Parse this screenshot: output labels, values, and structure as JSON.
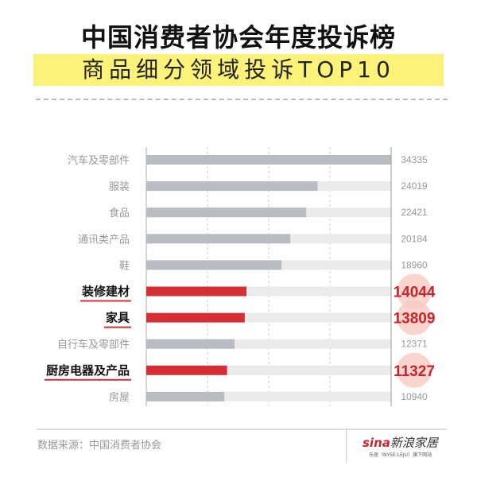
{
  "header": {
    "title": "中国消费者协会年度投诉榜",
    "subtitle": "商品细分领域投诉TOP10"
  },
  "chart_data": {
    "type": "bar",
    "orientation": "horizontal",
    "title": "中国消费者协会年度投诉榜",
    "subtitle": "商品细分领域投诉TOP10",
    "categories": [
      "汽车及零部件",
      "服装",
      "食品",
      "通讯类产品",
      "鞋",
      "装修建材",
      "家具",
      "自行车及零部件",
      "厨房电器及产品",
      "房屋"
    ],
    "values": [
      34335,
      24019,
      22421,
      20184,
      18960,
      14044,
      13809,
      12371,
      11327,
      10940
    ],
    "highlighted": [
      false,
      false,
      false,
      false,
      false,
      true,
      true,
      false,
      true,
      false
    ],
    "xlim": [
      0,
      34335
    ],
    "grid": "vertical dashed",
    "colors": {
      "normal": "#b9bcc1",
      "highlight": "#d32f34",
      "track": "#ebebeb",
      "circle": "#f9c9c2"
    }
  },
  "footer": {
    "source": "数据来源：中国消费者协会",
    "logo_brand": "sina",
    "logo_name": "新浪家居",
    "logo_sub": "乐居（NYSE:LEJU）旗下网站"
  }
}
